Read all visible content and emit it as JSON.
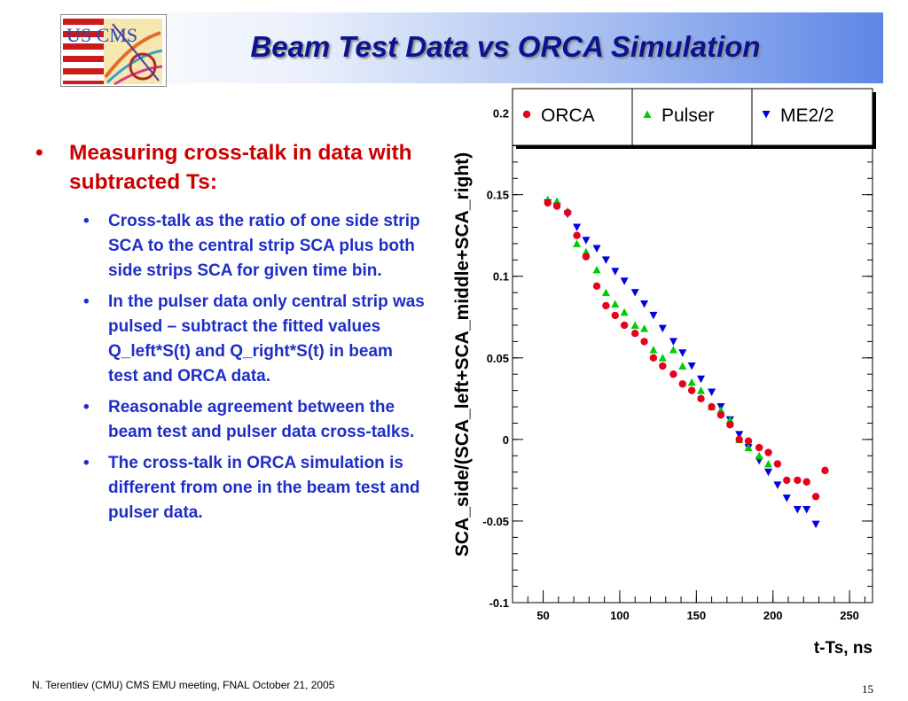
{
  "slide": {
    "title": "Beam Test Data vs ORCA Simulation",
    "logo_text": "US CMS",
    "bullet_main": "Measuring cross-talk in data with subtracted Ts:",
    "sub_bullets": [
      "Cross-talk as the ratio of one side strip SCA to the central strip SCA plus both side strips SCA for given time bin.",
      "In the pulser data only central strip was pulsed – subtract the fitted values Q_left*S(t) and Q_right*S(t) in beam test and ORCA data.",
      "Reasonable agreement between the beam test and pulser data cross-talks.",
      "The cross-talk in ORCA simulation is different from one in the beam test and pulser data."
    ],
    "bullet_glyph": "•",
    "footer": "N. Terentiev  (CMU)  CMS EMU meeting,  FNAL  October 21, 2005",
    "page_number": "15"
  },
  "chart_data": {
    "type": "scatter",
    "xlabel": "t-Ts, ns",
    "ylabel": "SCA_side/(SCA_left+SCA_middle+SCA_right)",
    "xlim": [
      30,
      265
    ],
    "ylim": [
      -0.1,
      0.215
    ],
    "xticks": [
      50,
      100,
      150,
      200,
      250
    ],
    "yticks": [
      -0.1,
      -0.05,
      0,
      0.05,
      0.1,
      0.15,
      0.2
    ],
    "ytick_labels": [
      "-0.1",
      "-0.05",
      "0",
      "0.05",
      "0.1",
      "0.15",
      "0.2"
    ],
    "legend_position": "top",
    "series": [
      {
        "name": "ORCA",
        "marker": "circle",
        "color": "#e8001c",
        "x": [
          53,
          59,
          66,
          72,
          78,
          85,
          91,
          97,
          103,
          110,
          116,
          122,
          128,
          135,
          141,
          147,
          153,
          160,
          166,
          172,
          178,
          184,
          191,
          197,
          203,
          209,
          216,
          222,
          228,
          234
        ],
        "y": [
          0.145,
          0.143,
          0.139,
          0.125,
          0.112,
          0.094,
          0.082,
          0.076,
          0.07,
          0.065,
          0.06,
          0.05,
          0.045,
          0.04,
          0.034,
          0.03,
          0.025,
          0.02,
          0.015,
          0.009,
          0.0,
          -0.001,
          -0.005,
          -0.008,
          -0.015,
          -0.025,
          -0.025,
          -0.026,
          -0.035,
          -0.019
        ]
      },
      {
        "name": "Pulser",
        "marker": "triangle-up",
        "color": "#00cc00",
        "x": [
          53,
          59,
          66,
          72,
          78,
          85,
          91,
          97,
          103,
          110,
          116,
          122,
          128,
          135,
          141,
          147,
          153,
          160,
          166,
          172,
          178,
          184,
          191,
          197
        ],
        "y": [
          0.147,
          0.146,
          0.14,
          0.12,
          0.115,
          0.104,
          0.09,
          0.083,
          0.078,
          0.07,
          0.068,
          0.055,
          0.05,
          0.055,
          0.045,
          0.035,
          0.03,
          0.02,
          0.018,
          0.012,
          0.0,
          -0.005,
          -0.01,
          -0.015
        ]
      },
      {
        "name": "ME2/2",
        "marker": "triangle-down",
        "color": "#0000e0",
        "x": [
          53,
          59,
          66,
          72,
          78,
          85,
          91,
          97,
          103,
          110,
          116,
          122,
          128,
          135,
          141,
          147,
          153,
          160,
          166,
          172,
          178,
          184,
          191,
          197,
          203,
          209,
          216,
          222,
          228
        ],
        "y": [
          0.145,
          0.143,
          0.138,
          0.13,
          0.122,
          0.117,
          0.11,
          0.103,
          0.097,
          0.09,
          0.083,
          0.076,
          0.068,
          0.06,
          0.053,
          0.045,
          0.037,
          0.029,
          0.02,
          0.012,
          0.003,
          -0.005,
          -0.013,
          -0.02,
          -0.028,
          -0.036,
          -0.043,
          -0.043,
          -0.052
        ]
      }
    ]
  }
}
